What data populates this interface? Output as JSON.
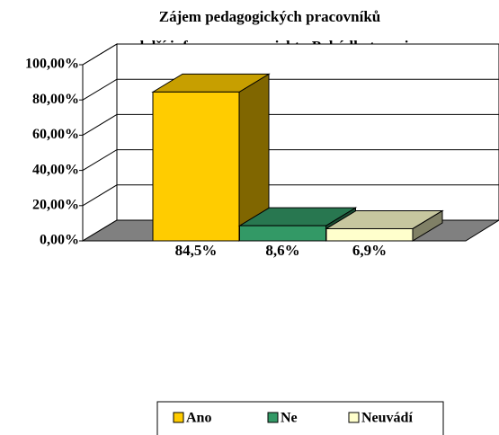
{
  "chart_data": {
    "type": "bar3d",
    "title": [
      "Zájem pedagogických pracovníků",
      "o další informace o projektu Pohádkoterapie"
    ],
    "categories": [
      "Ano",
      "Ne",
      "Neuvádí"
    ],
    "values": [
      84.5,
      8.6,
      6.9
    ],
    "value_labels": [
      "84,5%",
      "8,6%",
      "6,9%"
    ],
    "colors": [
      "#ffcc00",
      "#339966",
      "#ffffcc"
    ],
    "ylim": [
      0,
      100
    ],
    "yticks": [
      {
        "value": 0,
        "label": "0,00%"
      },
      {
        "value": 20,
        "label": "20,00%"
      },
      {
        "value": 40,
        "label": "40,00%"
      },
      {
        "value": 60,
        "label": "60,00%"
      },
      {
        "value": 80,
        "label": "80,00%"
      },
      {
        "value": 100,
        "label": "100,00%"
      }
    ],
    "grid": true,
    "legend": "bottom"
  }
}
